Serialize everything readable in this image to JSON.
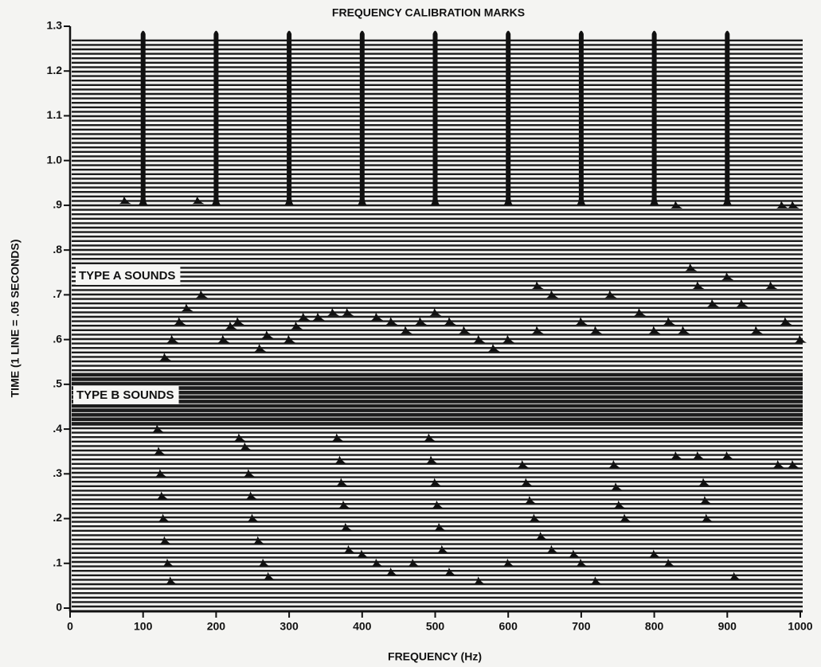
{
  "chart_data": {
    "type": "waterfall",
    "title": "FREQUENCY CALIBRATION MARKS",
    "x_label": "FREQUENCY (Hz)",
    "y_label": "TIME (1 LINE = .05 SECONDS)",
    "annotations": [
      "TYPE A SOUNDS",
      "TYPE B SOUNDS"
    ],
    "xlim": [
      0,
      1000
    ],
    "xticks": [
      0,
      100,
      200,
      300,
      400,
      500,
      600,
      700,
      800,
      900,
      1000
    ],
    "ylim": [
      0,
      1.3
    ],
    "yticks": [
      0,
      {
        "value": 0.1,
        "label": ".1"
      },
      {
        "value": 0.2,
        "label": ".2"
      },
      {
        "value": 0.3,
        "label": ".3"
      },
      {
        "value": 0.4,
        "label": ".4"
      },
      {
        "value": 0.5,
        "label": ".5"
      },
      {
        "value": 0.6,
        "label": ".6"
      },
      {
        "value": 0.7,
        "label": ".7"
      },
      {
        "value": 0.8,
        "label": ".8"
      },
      {
        "value": 0.9,
        "label": ".9"
      },
      {
        "value": 1,
        "label": "1.0"
      },
      1.1,
      1.2,
      1.3
    ],
    "color": "#111111",
    "calibration": {
      "x": [
        100,
        200,
        300,
        400,
        500,
        600,
        700,
        800,
        900
      ],
      "y_range": [
        0.9,
        1.29
      ]
    },
    "peaks": {
      "x": [
        120,
        122,
        124,
        126,
        128,
        130,
        134,
        138,
        232,
        240,
        245,
        248,
        250,
        258,
        265,
        272,
        366,
        370,
        372,
        375,
        378,
        382,
        492,
        495,
        500,
        503,
        506,
        510,
        620,
        625,
        630,
        636,
        645,
        660,
        745,
        748,
        752,
        760,
        868,
        870,
        872,
        400,
        420,
        440,
        470,
        520,
        560,
        600,
        690,
        700,
        720,
        800,
        820,
        830,
        860,
        900,
        970,
        990,
        910,
        130,
        140,
        150,
        160,
        180,
        210,
        220,
        230,
        260,
        270,
        300,
        310,
        320,
        340,
        360,
        380,
        420,
        440,
        460,
        480,
        500,
        520,
        540,
        560,
        580,
        600,
        640,
        640,
        660,
        700,
        720,
        740,
        780,
        800,
        820,
        840,
        850,
        860,
        880,
        900,
        920,
        940,
        960,
        980,
        1000,
        75,
        175,
        830,
        975,
        990
      ],
      "y": [
        0.4,
        0.35,
        0.3,
        0.25,
        0.2,
        0.15,
        0.1,
        0.06,
        0.38,
        0.36,
        0.3,
        0.25,
        0.2,
        0.15,
        0.1,
        0.07,
        0.38,
        0.33,
        0.28,
        0.23,
        0.18,
        0.13,
        0.38,
        0.33,
        0.28,
        0.23,
        0.18,
        0.13,
        0.32,
        0.28,
        0.24,
        0.2,
        0.16,
        0.13,
        0.32,
        0.27,
        0.23,
        0.2,
        0.28,
        0.24,
        0.2,
        0.12,
        0.1,
        0.08,
        0.1,
        0.08,
        0.06,
        0.1,
        0.12,
        0.1,
        0.06,
        0.12,
        0.1,
        0.34,
        0.34,
        0.34,
        0.32,
        0.32,
        0.07,
        0.56,
        0.6,
        0.64,
        0.67,
        0.7,
        0.6,
        0.63,
        0.64,
        0.58,
        0.61,
        0.6,
        0.63,
        0.65,
        0.65,
        0.66,
        0.66,
        0.65,
        0.64,
        0.62,
        0.64,
        0.66,
        0.64,
        0.62,
        0.6,
        0.58,
        0.6,
        0.62,
        0.72,
        0.7,
        0.64,
        0.62,
        0.7,
        0.66,
        0.62,
        0.64,
        0.62,
        0.76,
        0.72,
        0.68,
        0.74,
        0.68,
        0.62,
        0.72,
        0.64,
        0.6,
        0.91,
        0.91,
        0.9,
        0.9,
        0.9
      ]
    }
  }
}
